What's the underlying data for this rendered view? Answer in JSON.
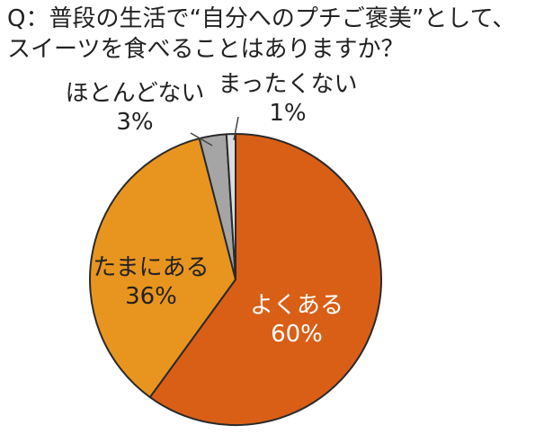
{
  "title": {
    "line1": "Q：普段の生活で“自分へのプチご褒美”として、",
    "line2": "スイーツを食べることはありますか？"
  },
  "chart_data": {
    "type": "pie",
    "title": "Q：普段の生活で“自分へのプチご褒美”として、スイーツを食べることはありますか？",
    "slices": [
      {
        "label": "よくある",
        "value": 60,
        "value_label": "60%",
        "color": "#d95f17"
      },
      {
        "label": "たまにある",
        "value": 36,
        "value_label": "36%",
        "color": "#e8951f"
      },
      {
        "label": "ほとんどない",
        "value": 3,
        "value_label": "3%",
        "color": "#a5a5a5"
      },
      {
        "label": "まったくない",
        "value": 1,
        "value_label": "1%",
        "color": "#dcdcdc"
      }
    ],
    "start": "top",
    "direction": "clockwise"
  }
}
